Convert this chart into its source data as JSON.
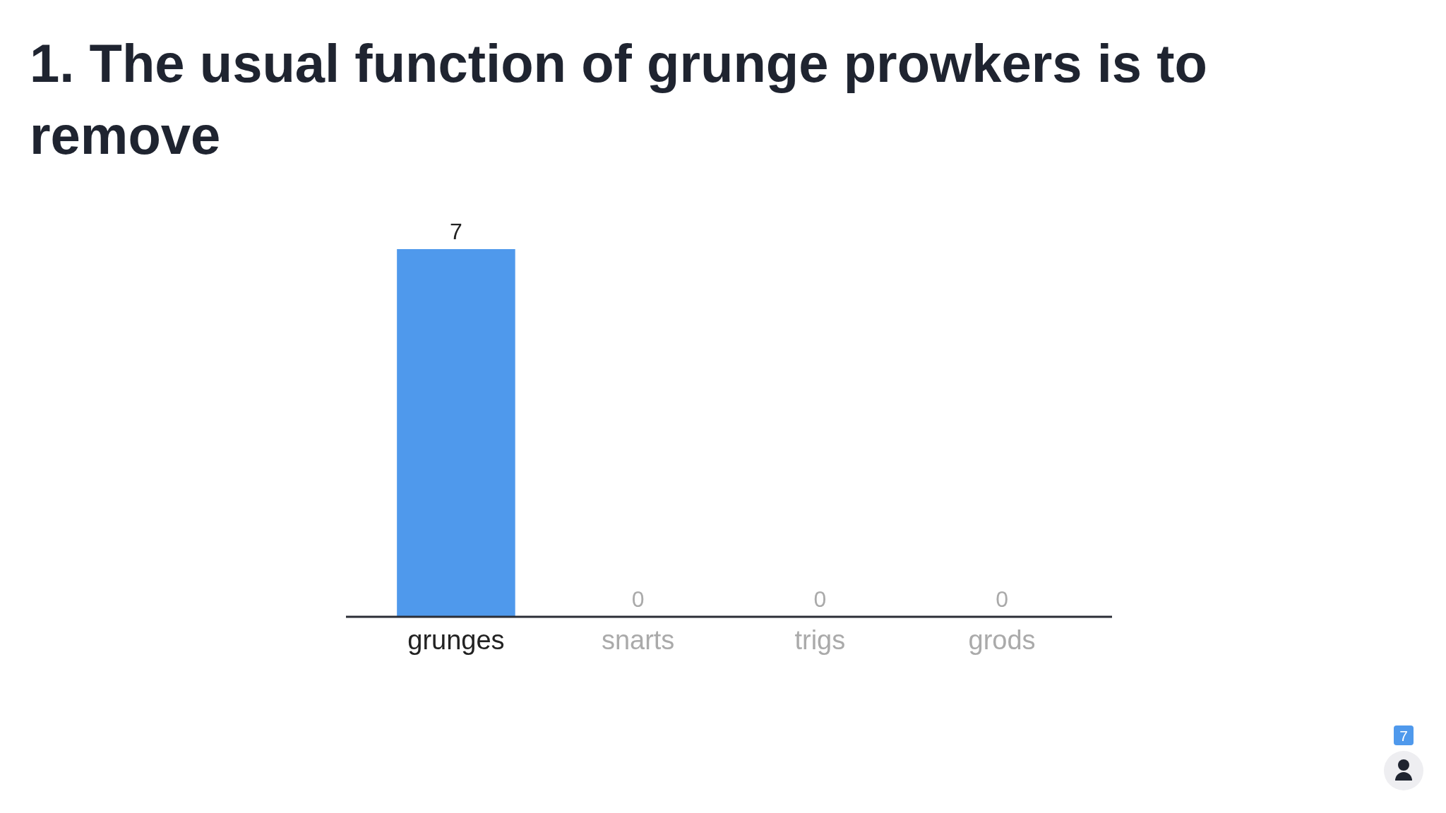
{
  "chart_data": {
    "type": "bar",
    "title": "1. The usual function of grunge prowkers is to remove",
    "categories": [
      "grunges",
      "snarts",
      "trigs",
      "grods"
    ],
    "values": [
      7,
      0,
      0,
      0
    ],
    "color": "#4f99ec",
    "data_labels": true,
    "annotations": [
      "7"
    ]
  }
}
